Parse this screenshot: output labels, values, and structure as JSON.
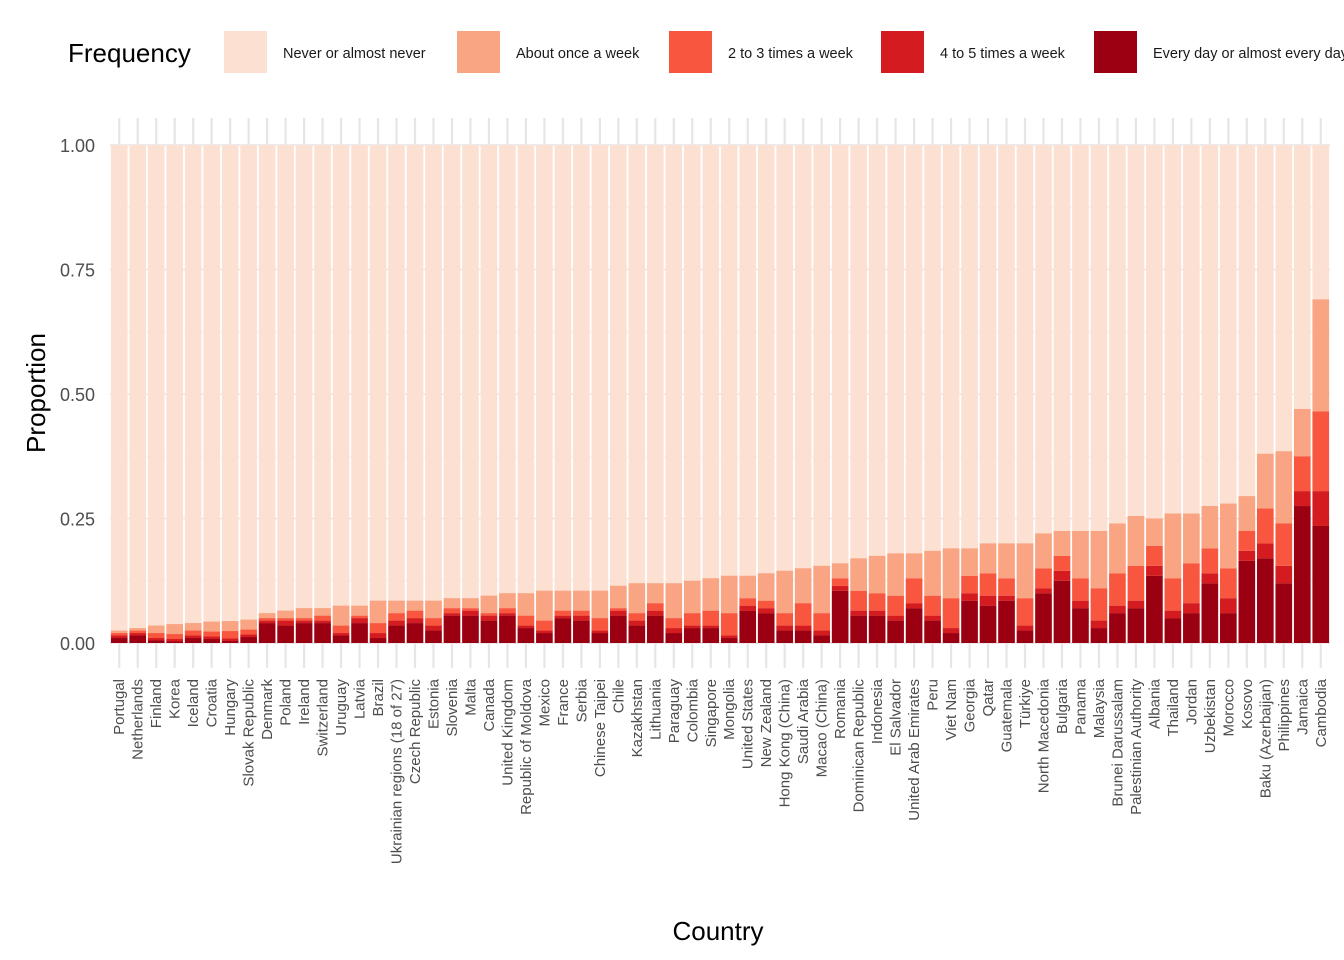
{
  "chart_data": {
    "type": "stacked-bar",
    "xlabel": "Country",
    "ylabel": "Proportion",
    "ylim": [
      0,
      1
    ],
    "y_ticks": [
      "0.00",
      "0.25",
      "0.50",
      "0.75",
      "1.00"
    ],
    "y_tick_values": [
      0,
      0.25,
      0.5,
      0.75,
      1.0
    ],
    "grid": true,
    "legend": {
      "title": "Frequency",
      "placement": "top",
      "entries": [
        {
          "label": "Never or almost never",
          "color": "#FCE0D2"
        },
        {
          "label": "About once a week",
          "color": "#F9A482"
        },
        {
          "label": "2 to 3 times a week",
          "color": "#F8563F"
        },
        {
          "label": "4 to 5 times a week",
          "color": "#D41B20"
        },
        {
          "label": "Every day or almost every day",
          "color": "#9A0012"
        }
      ]
    },
    "categories": [
      "Portugal",
      "Netherlands",
      "Finland",
      "Korea",
      "Iceland",
      "Croatia",
      "Hungary",
      "Slovak Republic",
      "Denmark",
      "Poland",
      "Ireland",
      "Switzerland",
      "Uruguay",
      "Latvia",
      "Brazil",
      "Ukrainian regions (18 of 27)",
      "Czech Republic",
      "Estonia",
      "Slovenia",
      "Malta",
      "Canada",
      "United Kingdom",
      "Republic of Moldova",
      "Mexico",
      "France",
      "Serbia",
      "Chinese Taipei",
      "Chile",
      "Kazakhstan",
      "Lithuania",
      "Paraguay",
      "Colombia",
      "Singapore",
      "Mongolia",
      "United States",
      "New Zealand",
      "Hong Kong (China)",
      "Saudi Arabia",
      "Macao (China)",
      "Romania",
      "Dominican Republic",
      "Indonesia",
      "El Salvador",
      "United Arab Emirates",
      "Peru",
      "Viet Nam",
      "Georgia",
      "Qatar",
      "Guatemala",
      "Türkiye",
      "North Macedonia",
      "Bulgaria",
      "Panama",
      "Malaysia",
      "Brunei Darussalam",
      "Palestinian Authority",
      "Albania",
      "Thailand",
      "Jordan",
      "Uzbekistan",
      "Morocco",
      "Kosovo",
      "Baku (Azerbaijan)",
      "Philippines",
      "Jamaica",
      "Cambodia"
    ],
    "series": [
      {
        "name": "Every day or almost every day",
        "values": [
          0.01,
          0.015,
          0.005,
          0.003,
          0.01,
          0.008,
          0.004,
          0.012,
          0.04,
          0.035,
          0.04,
          0.04,
          0.015,
          0.04,
          0.01,
          0.035,
          0.04,
          0.025,
          0.055,
          0.055,
          0.045,
          0.055,
          0.03,
          0.02,
          0.05,
          0.045,
          0.02,
          0.055,
          0.035,
          0.055,
          0.02,
          0.03,
          0.03,
          0.01,
          0.065,
          0.06,
          0.025,
          0.025,
          0.015,
          0.105,
          0.055,
          0.055,
          0.045,
          0.07,
          0.045,
          0.02,
          0.085,
          0.075,
          0.085,
          0.025,
          0.1,
          0.125,
          0.07,
          0.03,
          0.06,
          0.07,
          0.135,
          0.05,
          0.06,
          0.12,
          0.06,
          0.165,
          0.17,
          0.12,
          0.275,
          0.235
        ]
      },
      {
        "name": "4 to 5 times a week",
        "values": [
          0.005,
          0.005,
          0.005,
          0.005,
          0.005,
          0.005,
          0.005,
          0.005,
          0.005,
          0.01,
          0.005,
          0.005,
          0.005,
          0.01,
          0.01,
          0.01,
          0.01,
          0.01,
          0.005,
          0.01,
          0.01,
          0.005,
          0.005,
          0.005,
          0.005,
          0.01,
          0.005,
          0.01,
          0.01,
          0.01,
          0.01,
          0.005,
          0.005,
          0.005,
          0.01,
          0.01,
          0.01,
          0.01,
          0.01,
          0.01,
          0.01,
          0.01,
          0.01,
          0.01,
          0.01,
          0.01,
          0.015,
          0.02,
          0.01,
          0.01,
          0.01,
          0.02,
          0.015,
          0.015,
          0.015,
          0.015,
          0.02,
          0.015,
          0.02,
          0.02,
          0.03,
          0.02,
          0.03,
          0.035,
          0.03,
          0.07
        ]
      },
      {
        "name": "2 to 3 times a week",
        "values": [
          0.005,
          0.005,
          0.01,
          0.01,
          0.01,
          0.01,
          0.015,
          0.01,
          0.005,
          0.005,
          0.005,
          0.01,
          0.015,
          0.005,
          0.02,
          0.015,
          0.015,
          0.015,
          0.01,
          0.005,
          0.005,
          0.01,
          0.02,
          0.02,
          0.01,
          0.01,
          0.025,
          0.005,
          0.015,
          0.015,
          0.02,
          0.025,
          0.03,
          0.045,
          0.015,
          0.015,
          0.025,
          0.045,
          0.035,
          0.015,
          0.04,
          0.035,
          0.04,
          0.05,
          0.04,
          0.06,
          0.035,
          0.045,
          0.035,
          0.055,
          0.04,
          0.03,
          0.045,
          0.065,
          0.065,
          0.07,
          0.04,
          0.065,
          0.08,
          0.05,
          0.06,
          0.04,
          0.07,
          0.085,
          0.07,
          0.16
        ]
      },
      {
        "name": "About once a week",
        "values": [
          0.005,
          0.005,
          0.015,
          0.02,
          0.015,
          0.02,
          0.02,
          0.02,
          0.01,
          0.015,
          0.02,
          0.015,
          0.04,
          0.02,
          0.045,
          0.025,
          0.02,
          0.035,
          0.02,
          0.02,
          0.035,
          0.03,
          0.045,
          0.06,
          0.04,
          0.04,
          0.055,
          0.045,
          0.06,
          0.04,
          0.07,
          0.065,
          0.065,
          0.075,
          0.045,
          0.055,
          0.085,
          0.07,
          0.095,
          0.03,
          0.065,
          0.075,
          0.085,
          0.05,
          0.09,
          0.1,
          0.055,
          0.06,
          0.07,
          0.11,
          0.07,
          0.05,
          0.095,
          0.115,
          0.1,
          0.1,
          0.055,
          0.13,
          0.1,
          0.085,
          0.13,
          0.07,
          0.11,
          0.145,
          0.095,
          0.225
        ]
      }
    ]
  }
}
